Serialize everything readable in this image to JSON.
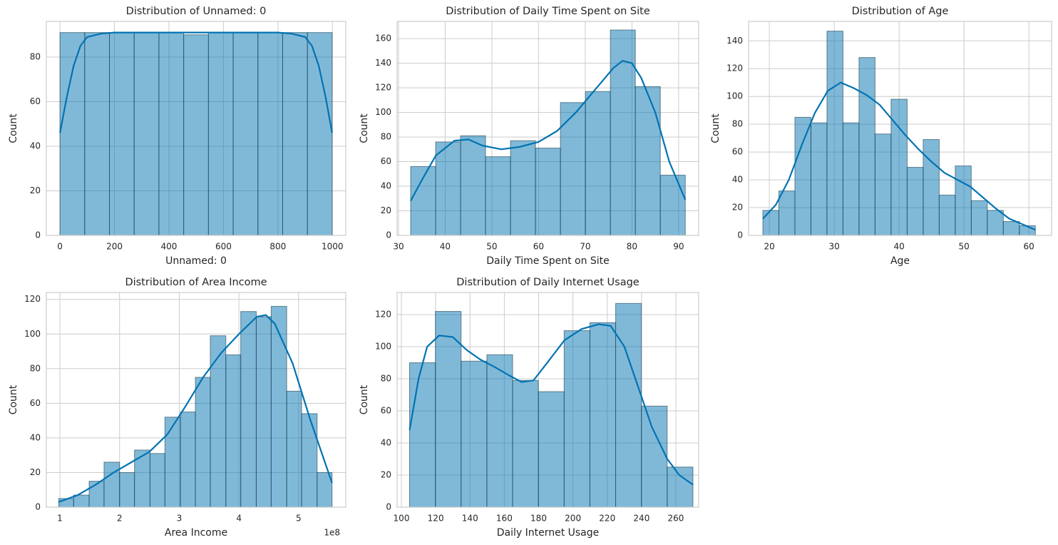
{
  "chart_data": [
    {
      "type": "histogram",
      "title": "Distribution of Unnamed: 0",
      "xlabel": "Unnamed: 0",
      "ylabel": "Count",
      "bins": [
        0,
        90.82,
        181.64,
        272.45,
        363.27,
        454.09,
        544.91,
        635.73,
        726.55,
        817.36,
        908.18,
        999
      ],
      "values": [
        91,
        91,
        91,
        91,
        91,
        90,
        91,
        91,
        91,
        91,
        91
      ],
      "kde": {
        "x": [
          0,
          25,
          50,
          75,
          100,
          150,
          200,
          300,
          500,
          700,
          800,
          850,
          900,
          925,
          950,
          975,
          999
        ],
        "values": [
          46,
          62,
          76,
          85,
          89,
          90.5,
          91,
          91,
          91,
          91,
          91,
          90.5,
          89,
          85,
          76,
          62,
          46
        ]
      },
      "color": "#0173b2",
      "xlim": [
        -50,
        1049
      ],
      "ylim": [
        0,
        96
      ],
      "xticks": [
        0,
        200,
        400,
        600,
        800,
        1000
      ],
      "yticks": [
        0,
        20,
        40,
        60,
        80
      ],
      "grid": true
    },
    {
      "type": "histogram",
      "title": "Distribution of Daily Time Spent on Site",
      "xlabel": "Daily Time Spent on Site",
      "ylabel": "Count",
      "bins": [
        32.6,
        37.95,
        43.3,
        48.64,
        53.99,
        59.34,
        64.69,
        70.04,
        75.38,
        80.73,
        86.08,
        91.43
      ],
      "values": [
        56,
        76,
        81,
        64,
        77,
        71,
        108,
        117,
        167,
        121,
        49
      ],
      "kde": {
        "x": [
          32.6,
          35,
          38,
          42,
          45,
          48,
          52,
          56,
          60,
          64,
          68,
          72,
          76,
          78,
          80,
          82,
          85,
          88,
          91.43
        ],
        "values": [
          28,
          45,
          65,
          77,
          78,
          73,
          70,
          72,
          76,
          85,
          100,
          118,
          136,
          142,
          140,
          128,
          100,
          60,
          29
        ]
      },
      "color": "#0173b2",
      "xlim": [
        29.7,
        94.3
      ],
      "ylim": [
        0,
        174
      ],
      "xticks": [
        30,
        40,
        50,
        60,
        70,
        80,
        90
      ],
      "yticks": [
        0,
        20,
        40,
        60,
        80,
        100,
        120,
        140,
        160
      ],
      "grid": true
    },
    {
      "type": "histogram",
      "title": "Distribution of Age",
      "xlabel": "Age",
      "ylabel": "Count",
      "bins": [
        19,
        21.47,
        23.94,
        26.41,
        28.88,
        31.35,
        33.82,
        36.29,
        38.76,
        41.24,
        43.71,
        46.18,
        48.65,
        51.12,
        53.59,
        56.06,
        58.53,
        61
      ],
      "values": [
        18,
        32,
        85,
        81,
        147,
        81,
        128,
        73,
        98,
        49,
        69,
        29,
        50,
        25,
        18,
        10,
        7
      ],
      "kde": {
        "x": [
          19,
          21,
          23,
          25,
          27,
          29,
          31,
          33,
          35,
          37,
          39,
          41,
          43,
          45,
          47,
          49,
          51,
          53,
          55,
          57,
          59,
          61
        ],
        "values": [
          12,
          22,
          40,
          65,
          88,
          104,
          110,
          106,
          101,
          94,
          83,
          72,
          62,
          53,
          45,
          40,
          35,
          27,
          19,
          12,
          8,
          4
        ]
      },
      "color": "#0173b2",
      "xlim": [
        16.8,
        63.5
      ],
      "ylim": [
        0,
        154
      ],
      "xticks": [
        20,
        30,
        40,
        50,
        60
      ],
      "yticks": [
        0,
        20,
        40,
        60,
        80,
        100,
        120,
        140
      ],
      "grid": true
    },
    {
      "type": "histogram",
      "title": "Distribution of Area Income",
      "xlabel": "Area Income",
      "ylabel": "Count",
      "offset_text": "1e8",
      "bins": [
        0.98,
        1.23,
        1.49,
        1.74,
        2.0,
        2.25,
        2.51,
        2.76,
        3.02,
        3.27,
        3.52,
        3.78,
        4.03,
        4.29,
        4.54,
        4.8,
        5.05,
        5.31,
        5.56
      ],
      "values": [
        5,
        7,
        15,
        26,
        20,
        33,
        31,
        52,
        55,
        75,
        99,
        88,
        113,
        110,
        116,
        67,
        54,
        20
      ],
      "kde": {
        "x": [
          0.98,
          1.3,
          1.6,
          1.9,
          2.2,
          2.5,
          2.8,
          3.1,
          3.4,
          3.7,
          4.0,
          4.3,
          4.45,
          4.6,
          4.9,
          5.2,
          5.56
        ],
        "values": [
          3,
          7,
          13,
          20,
          26,
          32,
          42,
          58,
          75,
          89,
          100,
          110,
          111,
          106,
          83,
          50,
          14
        ]
      },
      "color": "#0173b2",
      "xlim": [
        0.773,
        5.79
      ],
      "ylim": [
        0,
        124
      ],
      "xticks": [
        1,
        2,
        3,
        4,
        5
      ],
      "yticks": [
        0,
        20,
        40,
        60,
        80,
        100,
        120
      ],
      "grid": true
    },
    {
      "type": "histogram",
      "title": "Distribution of Daily Internet Usage",
      "xlabel": "Daily Internet Usage",
      "ylabel": "Count",
      "bins": [
        104.78,
        119.8,
        134.81,
        149.83,
        164.84,
        179.86,
        194.88,
        209.89,
        224.91,
        239.92,
        254.94,
        269.96
      ],
      "values": [
        90,
        122,
        91,
        95,
        79,
        72,
        110,
        115,
        127,
        63,
        25
      ],
      "kde": {
        "x": [
          104.78,
          110,
          115,
          122,
          130,
          138,
          146,
          155,
          163,
          170,
          177,
          185,
          195,
          205,
          215,
          222,
          230,
          238,
          246,
          255,
          262,
          269.96
        ],
        "values": [
          48,
          80,
          100,
          107,
          106,
          98,
          92,
          87,
          82,
          78,
          79,
          90,
          104,
          111,
          114,
          113,
          100,
          75,
          50,
          30,
          20,
          14
        ]
      },
      "color": "#0173b2",
      "xlim": [
        97.5,
        273.3
      ],
      "ylim": [
        0,
        133.8
      ],
      "xticks": [
        100,
        120,
        140,
        160,
        180,
        200,
        220,
        240,
        260
      ],
      "yticks": [
        0,
        20,
        40,
        60,
        80,
        100,
        120
      ],
      "grid": true
    }
  ]
}
